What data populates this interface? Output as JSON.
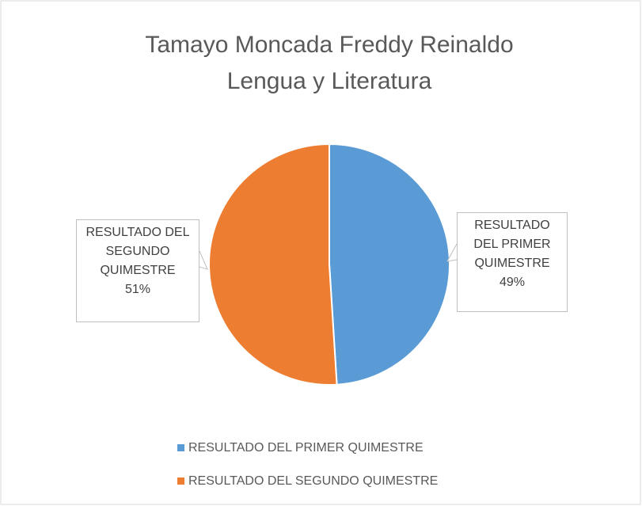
{
  "chart_data": {
    "type": "pie",
    "title": "Tamayo Moncada Freddy Reinaldo",
    "subtitle": "Lengua y Literatura",
    "categories": [
      "RESULTADO DEL PRIMER QUIMESTRE",
      "RESULTADO DEL SEGUNDO QUIMESTRE"
    ],
    "values": [
      49,
      51
    ],
    "value_labels": [
      "49%",
      "51%"
    ],
    "colors": [
      "#5b9bd5",
      "#ed7d31"
    ],
    "legend": "bottom"
  }
}
